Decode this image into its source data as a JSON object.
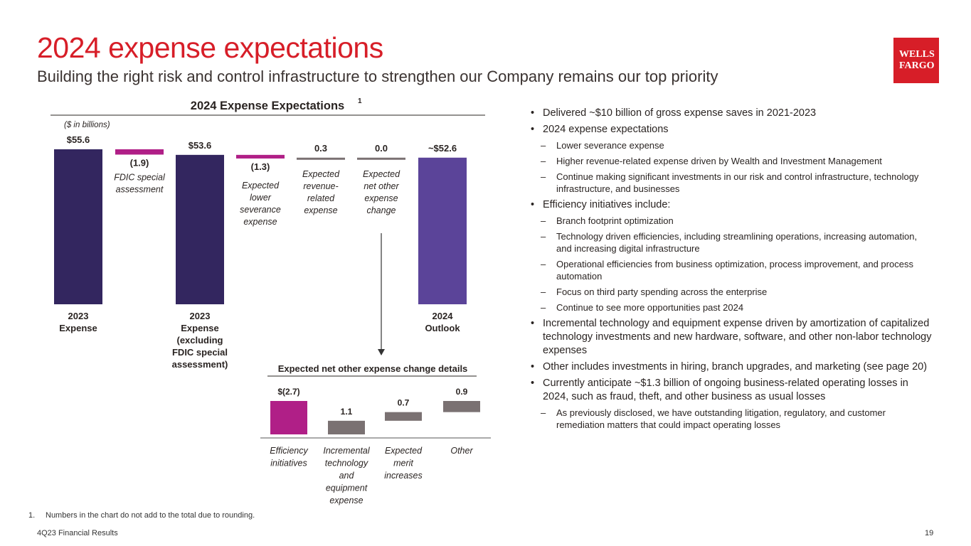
{
  "title": "2024 expense expectations",
  "subtitle": "Building the right risk and control infrastructure to strengthen our Company remains our top priority",
  "logo": {
    "line1": "WELLS",
    "line2": "FARGO"
  },
  "chart_data": [
    {
      "type": "bar",
      "subtype": "waterfall",
      "title": "2024 Expense Expectations",
      "title_superscript": "1",
      "units_note": "($ in billions)",
      "ylim": [
        0,
        56
      ],
      "steps": [
        {
          "kind": "total",
          "value": 55.6,
          "label": "$55.6",
          "category": [
            "2023",
            "Expense"
          ],
          "annotation": [],
          "color": "#33265f"
        },
        {
          "kind": "delta",
          "value": -1.9,
          "label": "(1.9)",
          "category": [],
          "annotation": [
            "FDIC special",
            "assessment"
          ],
          "color": "#b01f87"
        },
        {
          "kind": "total",
          "value": 53.6,
          "label": "$53.6",
          "category": [
            "2023",
            "Expense",
            "(excluding",
            "FDIC special",
            "assessment)"
          ],
          "annotation": [],
          "color": "#33265f"
        },
        {
          "kind": "delta",
          "value": -1.3,
          "label": "(1.3)",
          "category": [],
          "annotation": [
            "Expected",
            "lower",
            "severance",
            "expense"
          ],
          "color": "#b01f87"
        },
        {
          "kind": "delta",
          "value": 0.3,
          "label": "0.3",
          "category": [],
          "annotation": [
            "Expected",
            "revenue-",
            "related",
            "expense"
          ],
          "color": "#7a7172"
        },
        {
          "kind": "delta",
          "value": 0.0,
          "label": "0.0",
          "category": [],
          "annotation": [
            "Expected",
            "net other",
            "expense",
            "change"
          ],
          "color": "#7a7172"
        },
        {
          "kind": "total",
          "value": 52.6,
          "label": "~$52.6",
          "category": [
            "2024",
            "Outlook"
          ],
          "annotation": [],
          "color": "#5b4499"
        }
      ]
    },
    {
      "type": "bar",
      "subtype": "waterfall",
      "title": "Expected net other expense change details",
      "ylim": [
        -2.7,
        0
      ],
      "steps": [
        {
          "value": -2.7,
          "label": "$(2.7)",
          "category": [
            "Efficiency",
            "initiatives"
          ],
          "color": "#b01f87"
        },
        {
          "value": 1.1,
          "label": "1.1",
          "category": [
            "Incremental",
            "technology",
            "and",
            "equipment",
            "expense"
          ],
          "color": "#7a7172"
        },
        {
          "value": 0.7,
          "label": "0.7",
          "category": [
            "Expected",
            "merit",
            "increases"
          ],
          "color": "#7a7172"
        },
        {
          "value": 0.9,
          "label": "0.9",
          "category": [
            "Other"
          ],
          "color": "#7a7172"
        }
      ]
    }
  ],
  "bullets": [
    {
      "text": "Delivered ~$10 billion of gross expense saves in 2021-2023",
      "sub": []
    },
    {
      "text": "2024 expense expectations",
      "sub": [
        "Lower severance expense",
        "Higher revenue-related expense driven by Wealth and Investment Management",
        "Continue making significant investments in our risk and control infrastructure, technology infrastructure, and businesses"
      ]
    },
    {
      "text": "Efficiency initiatives include:",
      "sub": [
        "Branch footprint optimization",
        "Technology driven efficiencies, including streamlining operations, increasing automation, and increasing digital infrastructure",
        "Operational efficiencies from business optimization, process improvement, and process automation",
        "Focus on third party spending across the enterprise",
        "Continue to see more opportunities past 2024"
      ]
    },
    {
      "text": "Incremental technology and equipment expense driven by amortization of capitalized technology investments and new hardware, software, and other non-labor technology expenses",
      "sub": []
    },
    {
      "text": "Other includes investments in hiring, branch upgrades, and marketing (see page 20)",
      "sub": []
    },
    {
      "text": "Currently anticipate ~$1.3 billion of ongoing business-related operating losses in 2024, such as fraud, theft, and other business as usual losses",
      "sub": [
        "As previously disclosed, we have outstanding litigation, regulatory, and customer remediation matters that could impact operating losses"
      ]
    }
  ],
  "footnote": {
    "number": "1.",
    "text": "Numbers in the chart do not add to the total due to rounding."
  },
  "footer": {
    "left": "4Q23 Financial Results",
    "page": "19"
  }
}
